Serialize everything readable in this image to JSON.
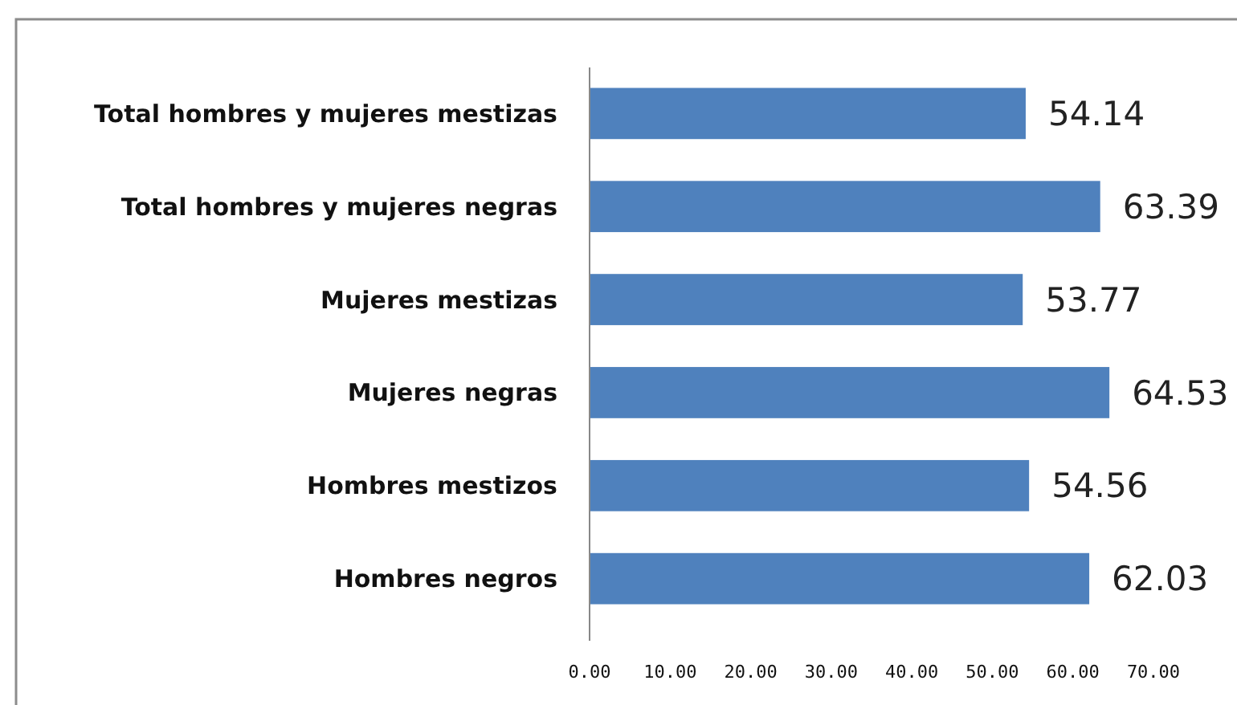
{
  "chart_data": {
    "type": "bar",
    "orientation": "horizontal",
    "categories": [
      "Total hombres y mujeres mestizas",
      "Total hombres y mujeres negras",
      "Mujeres mestizas",
      "Mujeres negras",
      "Hombres mestizos",
      "Hombres negros"
    ],
    "values": [
      54.14,
      63.39,
      53.77,
      64.53,
      54.56,
      62.03
    ],
    "color": "#4f81bd",
    "xlim": [
      0,
      70
    ],
    "xticks": [
      {
        "value": 0,
        "label": "0.00"
      },
      {
        "value": 10,
        "label": "10.00"
      },
      {
        "value": 20,
        "label": "20.00"
      },
      {
        "value": 30,
        "label": "30.00"
      },
      {
        "value": 40,
        "label": "40.00"
      },
      {
        "value": 50,
        "label": "50.00"
      },
      {
        "value": 60,
        "label": "60.00"
      },
      {
        "value": 70,
        "label": "70.00"
      }
    ],
    "data_labels": true
  }
}
